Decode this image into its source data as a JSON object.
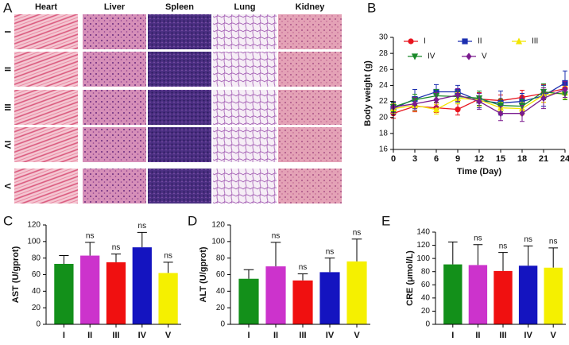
{
  "histology": {
    "panel_label": "A",
    "columns": [
      "Heart",
      "Liver",
      "Spleen",
      "Lung",
      "Kidney"
    ],
    "rows": [
      "I",
      "II",
      "III",
      "IV",
      "V"
    ]
  },
  "chart_data": [
    {
      "type": "line",
      "panel_label": "B",
      "y_label": "Body weight (g)",
      "x_label": "Time (Day)",
      "x": [
        0,
        3,
        6,
        9,
        12,
        15,
        18,
        21,
        24
      ],
      "xlim": [
        0,
        24
      ],
      "xticks": [
        0,
        3,
        6,
        9,
        12,
        15,
        18,
        21,
        24
      ],
      "ylim": [
        16,
        30
      ],
      "yticks": [
        16,
        18,
        20,
        22,
        24,
        26,
        28,
        30
      ],
      "legend": "top",
      "series": [
        {
          "name": "I",
          "color": "#e8141e",
          "marker": "circle",
          "values": [
            20.5,
            21.4,
            21.2,
            21.0,
            22.3,
            22.1,
            22.5,
            23.0,
            23.6
          ],
          "errors": [
            0.6,
            0.7,
            0.6,
            0.7,
            0.8,
            0.7,
            0.9,
            1.1,
            0.8
          ]
        },
        {
          "name": "II",
          "color": "#1c2fb0",
          "marker": "square",
          "values": [
            21.1,
            22.3,
            23.2,
            23.2,
            22.1,
            21.8,
            22.0,
            22.7,
            24.3
          ],
          "errors": [
            0.7,
            1.2,
            0.9,
            0.8,
            0.9,
            1.5,
            1.0,
            1.3,
            1.5
          ]
        },
        {
          "name": "III",
          "color": "#f2e600",
          "marker": "triangle-up",
          "values": [
            21.1,
            21.5,
            21.0,
            22.4,
            22.2,
            21.2,
            21.1,
            22.8,
            23.1
          ],
          "errors": [
            0.6,
            0.7,
            0.6,
            0.7,
            0.8,
            0.7,
            0.8,
            0.9,
            0.8
          ]
        },
        {
          "name": "IV",
          "color": "#1a8a2a",
          "marker": "triangle-down",
          "values": [
            21.3,
            22.2,
            22.7,
            22.6,
            22.4,
            21.5,
            21.4,
            23.2,
            22.9
          ],
          "errors": [
            0.6,
            0.7,
            0.8,
            0.7,
            0.9,
            0.8,
            0.8,
            1.0,
            0.7
          ]
        },
        {
          "name": "V",
          "color": "#7a1a8e",
          "marker": "diamond",
          "values": [
            21.3,
            21.7,
            22.2,
            22.8,
            22.0,
            20.5,
            20.5,
            22.4,
            23.5
          ],
          "errors": [
            0.7,
            0.8,
            0.9,
            0.8,
            1.0,
            0.9,
            1.0,
            1.3,
            1.0
          ]
        }
      ]
    },
    {
      "type": "bar",
      "panel_label": "C",
      "y_label": "AST (U/gprot)",
      "categories": [
        "I",
        "II",
        "III",
        "IV",
        "V"
      ],
      "values": [
        73,
        83,
        75,
        93,
        62
      ],
      "errors": [
        10,
        16,
        10,
        18,
        13
      ],
      "annotations": [
        null,
        "ns",
        "ns",
        "ns",
        "ns"
      ],
      "colors": [
        "#13901a",
        "#cc33cc",
        "#f01010",
        "#1414c0",
        "#f5f000"
      ],
      "ylim": [
        0,
        120
      ],
      "yticks": [
        0,
        20,
        40,
        60,
        80,
        100,
        120
      ]
    },
    {
      "type": "bar",
      "panel_label": "D",
      "y_label": "ALT (U/gprot)",
      "categories": [
        "I",
        "II",
        "III",
        "IV",
        "V"
      ],
      "values": [
        55,
        70,
        53,
        63,
        76
      ],
      "errors": [
        11,
        29,
        8,
        17,
        27
      ],
      "annotations": [
        null,
        "ns",
        "ns",
        "ns",
        "ns"
      ],
      "colors": [
        "#13901a",
        "#cc33cc",
        "#f01010",
        "#1414c0",
        "#f5f000"
      ],
      "ylim": [
        0,
        120
      ],
      "yticks": [
        0,
        20,
        40,
        60,
        80,
        100,
        120
      ]
    },
    {
      "type": "bar",
      "panel_label": "E",
      "y_label": "CRE (μmol/L)",
      "categories": [
        "I",
        "II",
        "III",
        "IV",
        "V"
      ],
      "values": [
        91,
        90,
        81,
        89,
        86
      ],
      "errors": [
        34,
        31,
        28,
        30,
        30
      ],
      "annotations": [
        null,
        "ns",
        "ns",
        "ns",
        "ns"
      ],
      "colors": [
        "#13901a",
        "#cc33cc",
        "#f01010",
        "#1414c0",
        "#f5f000"
      ],
      "ylim": [
        0,
        140
      ],
      "yticks": [
        0,
        20,
        40,
        60,
        80,
        100,
        120,
        140
      ]
    }
  ]
}
